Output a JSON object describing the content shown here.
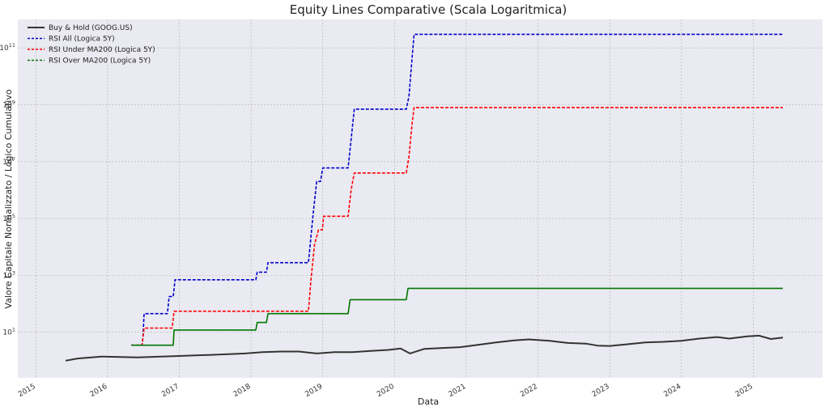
{
  "chart_data": {
    "type": "line",
    "title": "Equity Lines Comparative (Scala Logaritmica)",
    "xlabel": "Data",
    "ylabel": "Valore Capitale Normalizzato / Logico Cumulativo",
    "y_scale": "log",
    "ylim": [
      0.25,
      1000000000000
    ],
    "xlim": [
      "2014-10-01",
      "2025-12-20"
    ],
    "x_ticks": [
      "2015",
      "2016",
      "2017",
      "2018",
      "2019",
      "2020",
      "2021",
      "2022",
      "2023",
      "2024",
      "2025"
    ],
    "y_ticks": [
      {
        "value": 10,
        "mantissa": "10",
        "exp": "1"
      },
      {
        "value": 1000,
        "mantissa": "10",
        "exp": "3"
      },
      {
        "value": 100000,
        "mantissa": "10",
        "exp": "5"
      },
      {
        "value": 10000000,
        "mantissa": "10",
        "exp": "7"
      },
      {
        "value": 1000000000,
        "mantissa": "10",
        "exp": "9"
      },
      {
        "value": 100000000000,
        "mantissa": "10",
        "exp": "11"
      }
    ],
    "grid": true,
    "legend_position": "top-left",
    "series": [
      {
        "name": "Buy & Hold (GOOG.US)",
        "color": "#333333",
        "style": "solid",
        "points": [
          [
            "2015-06-01",
            1.0
          ],
          [
            "2015-08-01",
            1.2
          ],
          [
            "2015-12-01",
            1.4
          ],
          [
            "2016-06-01",
            1.3
          ],
          [
            "2016-12-01",
            1.45
          ],
          [
            "2017-06-01",
            1.6
          ],
          [
            "2017-12-01",
            1.8
          ],
          [
            "2018-03-01",
            2.0
          ],
          [
            "2018-06-01",
            2.1
          ],
          [
            "2018-09-01",
            2.1
          ],
          [
            "2018-12-01",
            1.8
          ],
          [
            "2019-03-01",
            2.0
          ],
          [
            "2019-06-01",
            2.0
          ],
          [
            "2019-09-01",
            2.2
          ],
          [
            "2019-12-01",
            2.4
          ],
          [
            "2020-02-01",
            2.7
          ],
          [
            "2020-03-20",
            1.8
          ],
          [
            "2020-06-01",
            2.6
          ],
          [
            "2020-09-01",
            2.8
          ],
          [
            "2020-12-01",
            3.0
          ],
          [
            "2021-03-01",
            3.6
          ],
          [
            "2021-06-01",
            4.4
          ],
          [
            "2021-09-01",
            5.2
          ],
          [
            "2021-11-15",
            5.6
          ],
          [
            "2022-03-01",
            5.0
          ],
          [
            "2022-06-01",
            4.2
          ],
          [
            "2022-09-01",
            4.0
          ],
          [
            "2022-11-01",
            3.4
          ],
          [
            "2023-01-01",
            3.3
          ],
          [
            "2023-04-01",
            3.8
          ],
          [
            "2023-07-01",
            4.4
          ],
          [
            "2023-10-01",
            4.6
          ],
          [
            "2024-01-01",
            5.0
          ],
          [
            "2024-04-01",
            6.0
          ],
          [
            "2024-07-01",
            6.8
          ],
          [
            "2024-09-01",
            6.0
          ],
          [
            "2024-12-01",
            7.2
          ],
          [
            "2025-02-01",
            7.6
          ],
          [
            "2025-04-01",
            5.8
          ],
          [
            "2025-06-01",
            6.5
          ]
        ]
      },
      {
        "name": "RSI All (Logica 5Y)",
        "color": "#0000cc",
        "style": "dashed",
        "points": [
          [
            "2016-05-01",
            3.5
          ],
          [
            "2016-06-25",
            3.5
          ],
          [
            "2016-06-30",
            8
          ],
          [
            "2016-07-05",
            45
          ],
          [
            "2016-11-01",
            45
          ],
          [
            "2016-11-10",
            180
          ],
          [
            "2016-12-01",
            180
          ],
          [
            "2016-12-10",
            700
          ],
          [
            "2018-01-25",
            700
          ],
          [
            "2018-02-01",
            1300
          ],
          [
            "2018-03-20",
            1300
          ],
          [
            "2018-03-28",
            2800
          ],
          [
            "2018-10-20",
            2800
          ],
          [
            "2018-11-01",
            20000
          ],
          [
            "2018-11-15",
            200000
          ],
          [
            "2018-12-01",
            2000000
          ],
          [
            "2018-12-20",
            2000000
          ],
          [
            "2019-01-01",
            6000000
          ],
          [
            "2019-05-10",
            6000000
          ],
          [
            "2019-05-25",
            60000000
          ],
          [
            "2019-06-10",
            700000000
          ],
          [
            "2020-03-01",
            700000000
          ],
          [
            "2020-03-15",
            2000000000
          ],
          [
            "2020-03-30",
            40000000000
          ],
          [
            "2020-04-10",
            300000000000
          ],
          [
            "2025-06-01",
            300000000000
          ]
        ]
      },
      {
        "name": "RSI Under MA200 (Logica 5Y)",
        "color": "#ff0000",
        "style": "dashed",
        "points": [
          [
            "2016-05-01",
            3.5
          ],
          [
            "2016-06-25",
            3.5
          ],
          [
            "2016-07-05",
            14
          ],
          [
            "2016-11-25",
            14
          ],
          [
            "2016-12-05",
            55
          ],
          [
            "2018-10-20",
            55
          ],
          [
            "2018-11-01",
            600
          ],
          [
            "2018-11-20",
            12000
          ],
          [
            "2018-12-10",
            40000
          ],
          [
            "2018-12-30",
            40000
          ],
          [
            "2019-01-05",
            120000
          ],
          [
            "2019-05-10",
            120000
          ],
          [
            "2019-05-25",
            1000000
          ],
          [
            "2019-06-10",
            4000000
          ],
          [
            "2020-03-01",
            4000000
          ],
          [
            "2020-03-15",
            15000000
          ],
          [
            "2020-03-30",
            200000000
          ],
          [
            "2020-04-10",
            800000000
          ],
          [
            "2025-06-01",
            800000000
          ]
        ]
      },
      {
        "name": "RSI Over MA200 (Logica 5Y)",
        "color": "#007700",
        "style": "solid",
        "points": [
          [
            "2016-05-01",
            3.5
          ],
          [
            "2016-12-01",
            3.5
          ],
          [
            "2016-12-05",
            12
          ],
          [
            "2018-01-25",
            12
          ],
          [
            "2018-02-01",
            22
          ],
          [
            "2018-03-20",
            22
          ],
          [
            "2018-03-28",
            45
          ],
          [
            "2019-05-10",
            45
          ],
          [
            "2019-05-20",
            140
          ],
          [
            "2020-03-01",
            140
          ],
          [
            "2020-03-10",
            350
          ],
          [
            "2025-06-01",
            350
          ]
        ]
      }
    ]
  }
}
